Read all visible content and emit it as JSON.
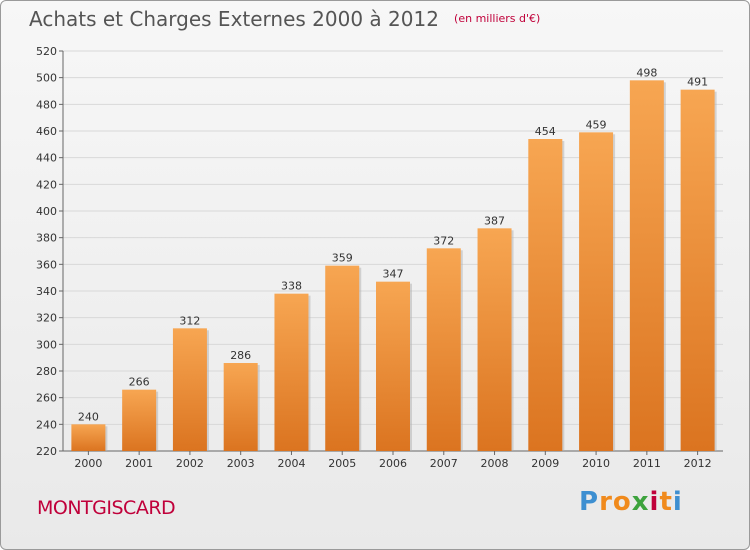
{
  "chart_data": {
    "type": "bar",
    "title": "Achats et Charges Externes 2000 à 2012",
    "subtitle": "(en milliers d'€)",
    "xlabel": "",
    "ylabel": "",
    "categories": [
      "2000",
      "2001",
      "2002",
      "2003",
      "2004",
      "2005",
      "2006",
      "2007",
      "2008",
      "2009",
      "2010",
      "2011",
      "2012"
    ],
    "values": [
      240,
      266,
      312,
      286,
      338,
      359,
      347,
      372,
      387,
      454,
      459,
      498,
      491
    ],
    "ylim": [
      220,
      520
    ],
    "yticks": [
      220,
      240,
      260,
      280,
      300,
      320,
      340,
      360,
      380,
      400,
      420,
      440,
      460,
      480,
      500,
      520
    ],
    "grid": "horizontal",
    "bar_color": "#f0963a"
  },
  "footer": {
    "commune": "MONTGISCARD",
    "logo": "Proxiti"
  }
}
